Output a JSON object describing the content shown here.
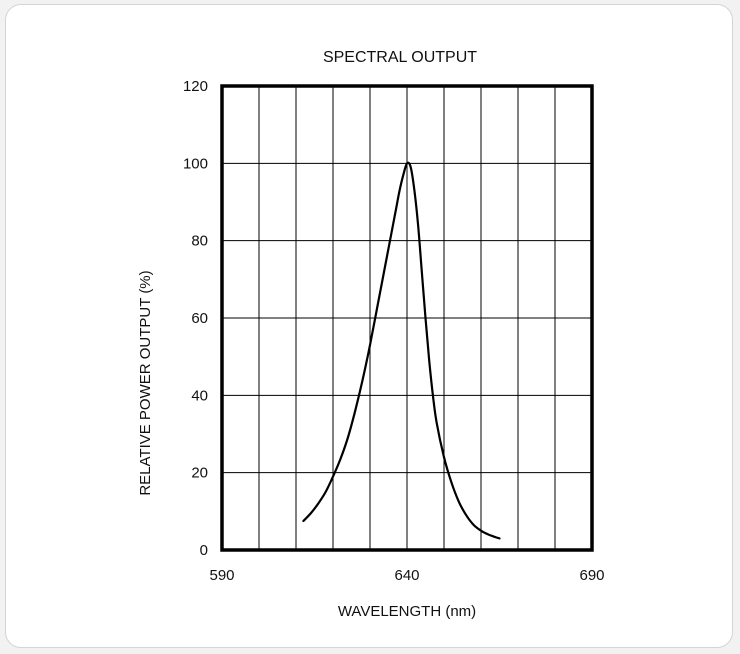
{
  "chart_data": {
    "type": "line",
    "title": "SPECTRAL OUTPUT",
    "xlabel": "WAVELENGTH (nm)",
    "ylabel": "RELATIVE POWER OUTPUT (%)",
    "xlim": [
      590,
      690
    ],
    "ylim": [
      0,
      120
    ],
    "x_ticks": [
      590,
      640,
      690
    ],
    "y_ticks": [
      0,
      20,
      40,
      60,
      80,
      100,
      120
    ],
    "x_grid": [
      600,
      610,
      620,
      630,
      640,
      650,
      660,
      670,
      680
    ],
    "y_grid": [
      20,
      40,
      60,
      80,
      100
    ],
    "grid": true,
    "legend": "none",
    "series": [
      {
        "color": "#000000",
        "x": [
          612,
          614,
          616,
          618,
          620,
          622,
          624,
          626,
          628,
          630,
          632,
          634,
          636,
          637,
          638,
          639,
          640,
          641,
          642,
          643,
          644,
          645,
          646,
          647,
          648,
          650,
          652,
          654,
          656,
          658,
          660,
          662,
          664,
          665
        ],
        "y": [
          7.5,
          9.5,
          12,
          15,
          19,
          23.5,
          29,
          36,
          44,
          53,
          63,
          73,
          83,
          88,
          93,
          97,
          100,
          99,
          93,
          84,
          72,
          60,
          49,
          40,
          33,
          24,
          17.5,
          12.5,
          9,
          6.5,
          5,
          4,
          3.3,
          3
        ]
      }
    ]
  }
}
